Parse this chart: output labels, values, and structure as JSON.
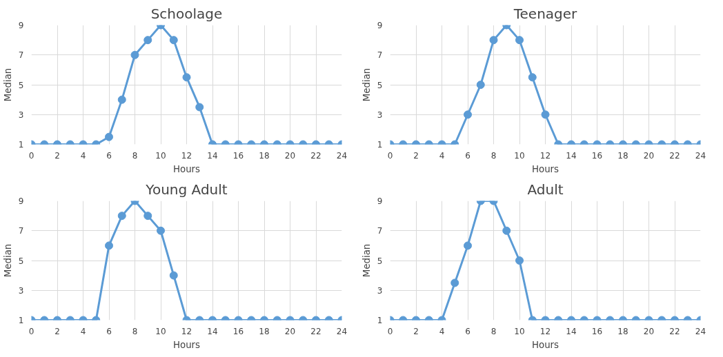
{
  "chart_data": [
    {
      "type": "line",
      "title": "Schoolage",
      "xlabel": "Hours",
      "ylabel": "Median",
      "x": [
        0,
        1,
        2,
        3,
        4,
        5,
        6,
        7,
        8,
        9,
        10,
        11,
        12,
        13,
        14,
        15,
        16,
        17,
        18,
        19,
        20,
        21,
        22,
        23,
        24
      ],
      "series": [
        {
          "color": "#5b9bd5",
          "values": [
            1,
            1,
            1,
            1,
            1,
            1,
            1.5,
            4,
            7,
            8,
            9,
            8,
            5.5,
            3.5,
            1,
            1,
            1,
            1,
            1,
            1,
            1,
            1,
            1,
            1,
            1
          ]
        }
      ],
      "xlim": [
        0,
        24
      ],
      "xticks": [
        0,
        2,
        4,
        6,
        8,
        10,
        12,
        14,
        16,
        18,
        20,
        22,
        24
      ],
      "ylim": [
        1,
        9
      ],
      "yticks": [
        1,
        3,
        5,
        7,
        9
      ],
      "grid": true,
      "marker": "circle",
      "line_style": "solid"
    },
    {
      "type": "line",
      "title": "Teenager",
      "xlabel": "Hours",
      "ylabel": "Median",
      "x": [
        0,
        1,
        2,
        3,
        4,
        5,
        6,
        7,
        8,
        9,
        10,
        11,
        12,
        13,
        14,
        15,
        16,
        17,
        18,
        19,
        20,
        21,
        22,
        23,
        24
      ],
      "series": [
        {
          "color": "#5b9bd5",
          "values": [
            1,
            1,
            1,
            1,
            1,
            1,
            3,
            5,
            8,
            9,
            8,
            5.5,
            3,
            1,
            1,
            1,
            1,
            1,
            1,
            1,
            1,
            1,
            1,
            1,
            1
          ]
        }
      ],
      "xlim": [
        0,
        24
      ],
      "xticks": [
        0,
        2,
        4,
        6,
        8,
        10,
        12,
        14,
        16,
        18,
        20,
        22,
        24
      ],
      "ylim": [
        1,
        9
      ],
      "yticks": [
        1,
        3,
        5,
        7,
        9
      ],
      "grid": true,
      "marker": "circle",
      "line_style": "solid"
    },
    {
      "type": "line",
      "title": "Young Adult",
      "xlabel": "Hours",
      "ylabel": "Median",
      "x": [
        0,
        1,
        2,
        3,
        4,
        5,
        6,
        7,
        8,
        9,
        10,
        11,
        12,
        13,
        14,
        15,
        16,
        17,
        18,
        19,
        20,
        21,
        22,
        23,
        24
      ],
      "series": [
        {
          "color": "#5b9bd5",
          "values": [
            1,
            1,
            1,
            1,
            1,
            1,
            6,
            8,
            9,
            8,
            7,
            4,
            1,
            1,
            1,
            1,
            1,
            1,
            1,
            1,
            1,
            1,
            1,
            1,
            1
          ]
        }
      ],
      "xlim": [
        0,
        24
      ],
      "xticks": [
        0,
        2,
        4,
        6,
        8,
        10,
        12,
        14,
        16,
        18,
        20,
        22,
        24
      ],
      "ylim": [
        1,
        9
      ],
      "yticks": [
        1,
        3,
        5,
        7,
        9
      ],
      "grid": true,
      "marker": "circle",
      "line_style": "solid"
    },
    {
      "type": "line",
      "title": "Adult",
      "xlabel": "Hours",
      "ylabel": "Median",
      "x": [
        0,
        1,
        2,
        3,
        4,
        5,
        6,
        7,
        8,
        9,
        10,
        11,
        12,
        13,
        14,
        15,
        16,
        17,
        18,
        19,
        20,
        21,
        22,
        23,
        24
      ],
      "series": [
        {
          "color": "#5b9bd5",
          "values": [
            1,
            1,
            1,
            1,
            1,
            3.5,
            6,
            9,
            9,
            7,
            5,
            1,
            1,
            1,
            1,
            1,
            1,
            1,
            1,
            1,
            1,
            1,
            1,
            1,
            1
          ]
        }
      ],
      "xlim": [
        0,
        24
      ],
      "xticks": [
        0,
        2,
        4,
        6,
        8,
        10,
        12,
        14,
        16,
        18,
        20,
        22,
        24
      ],
      "ylim": [
        1,
        9
      ],
      "yticks": [
        1,
        3,
        5,
        7,
        9
      ],
      "grid": true,
      "marker": "circle",
      "line_style": "solid"
    }
  ]
}
